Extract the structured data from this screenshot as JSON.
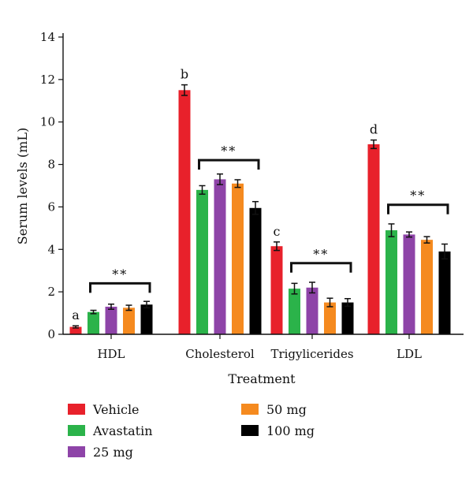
{
  "chart_data": {
    "type": "bar",
    "xlabel": "Treatment",
    "ylabel": "Serum levels (mL)",
    "ylim": [
      0,
      15
    ],
    "yticks": [
      0,
      2,
      4,
      6,
      8,
      10,
      12,
      14
    ],
    "categories": [
      "HDL",
      "Cholesterol",
      "Trigylicerides",
      "LDL"
    ],
    "series": [
      {
        "name": "Vehicle",
        "color": "#e8212b",
        "values": [
          0.35,
          11.5,
          4.15,
          8.95
        ],
        "errors": [
          0.05,
          0.25,
          0.2,
          0.2
        ]
      },
      {
        "name": "Avastatin",
        "color": "#2bb34a",
        "values": [
          1.05,
          6.8,
          2.15,
          4.9
        ],
        "errors": [
          0.08,
          0.2,
          0.25,
          0.3
        ]
      },
      {
        "name": "25 mg",
        "color": "#8e44a8",
        "values": [
          1.3,
          7.3,
          2.2,
          4.7
        ],
        "errors": [
          0.12,
          0.25,
          0.25,
          0.12
        ]
      },
      {
        "name": "50 mg",
        "color": "#f58a1f",
        "values": [
          1.25,
          7.1,
          1.5,
          4.45
        ],
        "errors": [
          0.12,
          0.18,
          0.2,
          0.15
        ]
      },
      {
        "name": "100 mg",
        "color": "#000000",
        "values": [
          1.4,
          5.95,
          1.5,
          3.9
        ],
        "errors": [
          0.15,
          0.3,
          0.18,
          0.35
        ]
      }
    ],
    "letter_annotations": [
      {
        "category": "HDL",
        "text": "a"
      },
      {
        "category": "Cholesterol",
        "text": "b"
      },
      {
        "category": "Trigylicerides",
        "text": "c"
      },
      {
        "category": "LDL",
        "text": "d"
      }
    ],
    "significance_brackets": [
      {
        "category": "HDL",
        "text": "**",
        "level": 2.4
      },
      {
        "category": "Cholesterol",
        "text": "**",
        "level": 8.2
      },
      {
        "category": "Trigylicerides",
        "text": "**",
        "level": 3.35
      },
      {
        "category": "LDL",
        "text": "**",
        "level": 6.1
      }
    ],
    "legend": {
      "placement": "bottom",
      "entries": [
        "Vehicle",
        "Avastatin",
        "25 mg",
        "50 mg",
        "100 mg"
      ]
    }
  }
}
